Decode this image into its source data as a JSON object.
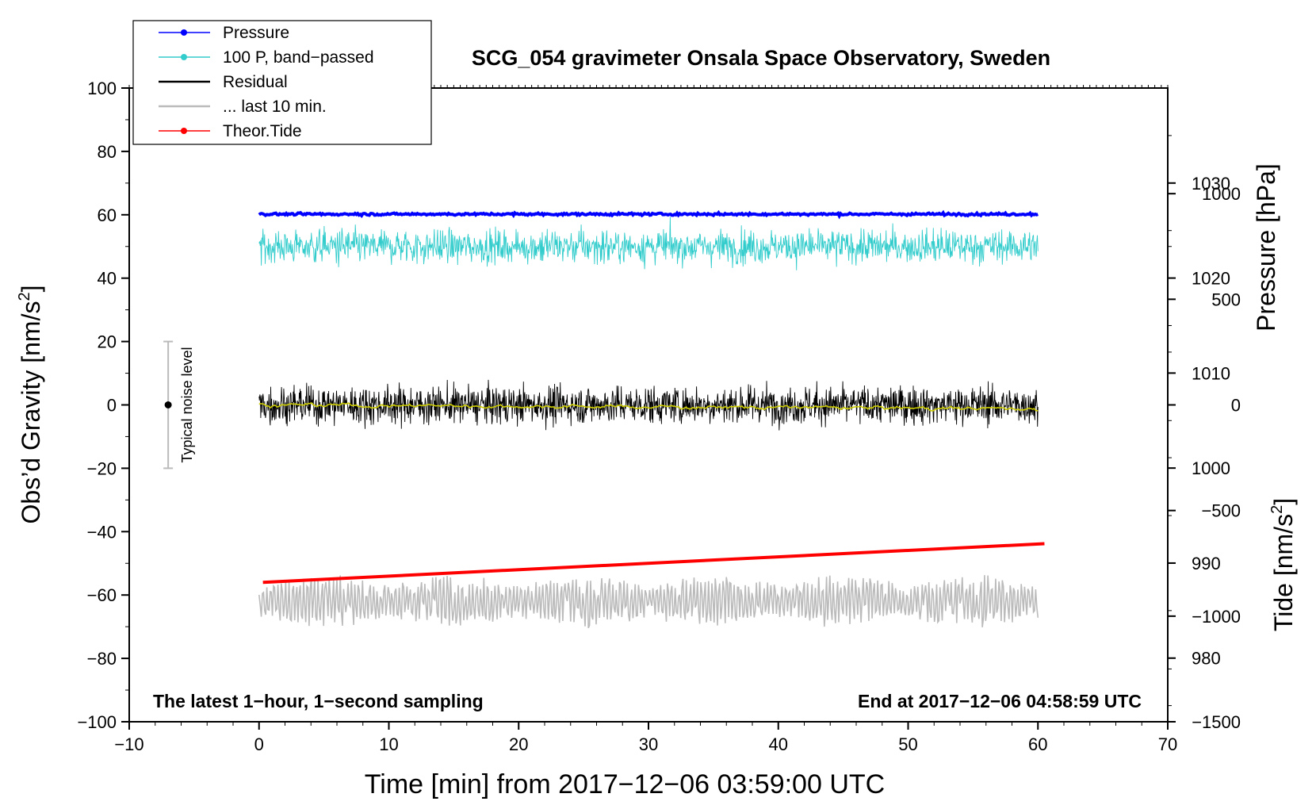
{
  "chart_data": {
    "type": "line",
    "title": "SCG_054 gravimeter Onsala Space Observatory, Sweden",
    "xlabel": "Time [min] from 2017−12−06 03:59:00 UTC",
    "ylabel_main": "Obs’d Gravity [nm/s",
    "ylabel_main_sup": "2",
    "ylabel_main_end": "]",
    "ylabel_pressure": "Pressure [hPa]",
    "ylabel_tide": "Tide [nm/s",
    "ylabel_tide_sup": "2",
    "ylabel_tide_end": "]",
    "annotation_left": "The latest 1−hour, 1−second sampling",
    "annotation_right": "End at 2017−12−06 04:58:59 UTC",
    "noise_label": "Typical noise level",
    "noise_bar": {
      "x": -7,
      "center": 0,
      "low": -20,
      "high": 20
    },
    "xlim": [
      -10,
      70
    ],
    "ylim": [
      -100,
      100
    ],
    "pressure_lim": [
      973.3,
      1040
    ],
    "tide_lim": [
      -1500,
      1500
    ],
    "x_ticks": [
      -10,
      0,
      10,
      20,
      30,
      40,
      50,
      60,
      70
    ],
    "x_tick_labels": [
      "−10",
      "0",
      "10",
      "20",
      "30",
      "40",
      "50",
      "60",
      "70"
    ],
    "y_ticks": [
      -100,
      -80,
      -60,
      -40,
      -20,
      0,
      20,
      40,
      60,
      80,
      100
    ],
    "y_tick_labels": [
      "−100",
      "−80",
      "−60",
      "−40",
      "−20",
      "0",
      "20",
      "40",
      "60",
      "80",
      "100"
    ],
    "pressure_ticks": [
      980,
      990,
      1000,
      1010,
      1020,
      1030
    ],
    "pressure_tick_labels": [
      "980",
      "990",
      "1000",
      "1010",
      "1020",
      "1030"
    ],
    "tide_ticks": [
      -1500,
      -1000,
      -500,
      0,
      500,
      1000
    ],
    "tide_tick_labels": [
      "−1500",
      "−1000",
      "−500",
      "0",
      "500",
      "1000"
    ],
    "legend": [
      {
        "label": "Pressure",
        "color": "#0000ff",
        "marker": true
      },
      {
        "label": "100 P, band−passed",
        "color": "#33cccc",
        "marker": true
      },
      {
        "label": "Residual",
        "color": "#000000",
        "marker": false
      },
      {
        "label": "... last 10 min.",
        "color": "#bbbbbb",
        "marker": false
      },
      {
        "label": "Theor.Tide",
        "color": "#ff0000",
        "marker": true
      }
    ],
    "series": [
      {
        "name": "Pressure",
        "color": "#0000ff",
        "axis": "main",
        "x_range": [
          0,
          60
        ],
        "level": 60.2,
        "noise": 0.3
      },
      {
        "name": "100 P, band−passed",
        "color": "#33cccc",
        "axis": "main",
        "x_range": [
          0,
          60
        ],
        "level": 50,
        "noise": 4.5,
        "min": 32,
        "max": 64
      },
      {
        "name": "Residual",
        "color": "#000000",
        "axis": "main",
        "x_range": [
          0,
          60
        ],
        "level": 0,
        "noise": 5,
        "min": -16,
        "max": 18
      },
      {
        "name": "Residual smoothed",
        "color": "#cccc00",
        "axis": "main",
        "x_range": [
          0,
          60
        ],
        "level": 0,
        "noise": 0.8
      },
      {
        "name": "... last 10 min.",
        "color": "#bbbbbb",
        "axis": "main",
        "x_range": [
          0,
          60
        ],
        "level": -62,
        "noise": 5,
        "min": -77,
        "max": -49
      },
      {
        "name": "Theor.Tide",
        "color": "#ff0000",
        "axis": "main",
        "x": [
          0.3,
          60.5
        ],
        "y": [
          -56,
          -43.8
        ]
      }
    ]
  },
  "colors": {
    "axis": "#000000",
    "noise_bar": "#bbbbbb"
  }
}
